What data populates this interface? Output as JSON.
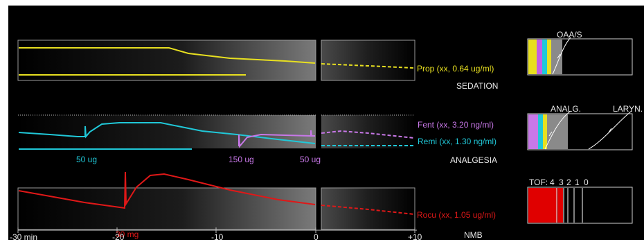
{
  "sedation": {
    "section_label": "SEDATION",
    "drug_label": "Prop (xx, 0.64 ug/ml)",
    "drug_color": "#e8e020",
    "scale_label": "OAA/S"
  },
  "analgesia": {
    "section_label": "ANALGESIA",
    "fent_label": "Fent (xx, 3.20 ng/ml)",
    "fent_color": "#c878e8",
    "remi_label": "Remi (xx, 1.30 ng/ml)",
    "remi_color": "#20c8d8",
    "bolus_labels": [
      "50 ug",
      "150 ug",
      "50 ug"
    ],
    "scale_label_analg": "ANALG.",
    "scale_label_laryn": "LARYN."
  },
  "nmb": {
    "section_label": "NMB",
    "drug_label": "Rocu (xx, 1.05 ug/ml)",
    "drug_color": "#e01818",
    "bolus_label": "30 mg",
    "tof_label": "TOF:",
    "tof_counts": [
      "4",
      "3",
      "2",
      "1",
      "0"
    ]
  },
  "time_axis": {
    "ticks": [
      "-30 min",
      "-20",
      "-10",
      "0",
      "+10"
    ]
  }
}
